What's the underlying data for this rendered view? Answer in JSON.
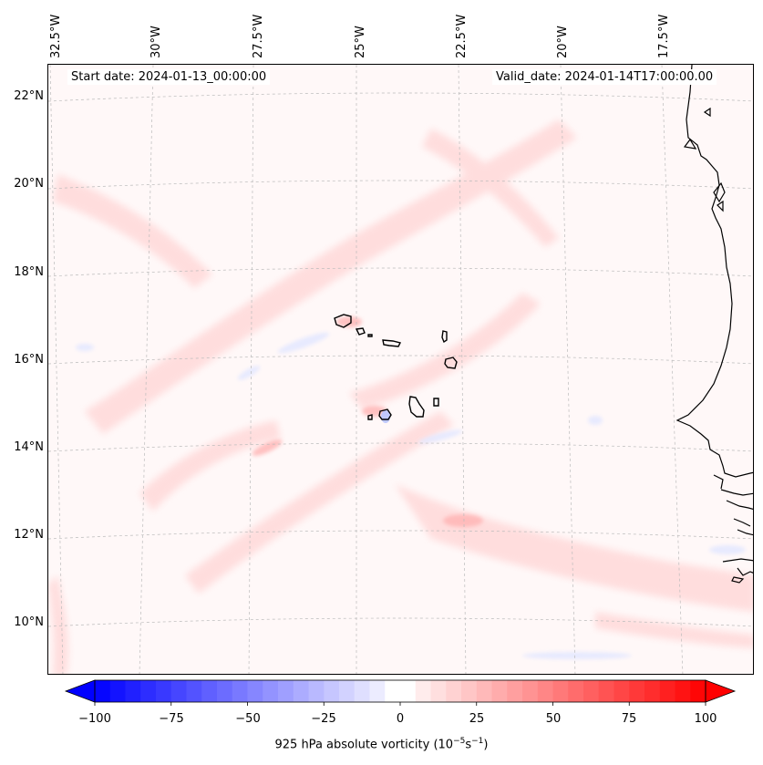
{
  "map": {
    "start_date": "Start date: 2024-01-13_00:00:00",
    "valid_date": "Valid_date: 2024-01-14T17:00:00.00",
    "lon_labels": [
      "32.5°W",
      "30°W",
      "27.5°W",
      "25°W",
      "22.5°W",
      "20°W",
      "17.5°W"
    ],
    "lat_labels": [
      "22°N",
      "20°N",
      "18°N",
      "16°N",
      "14°N",
      "12°N",
      "10°N"
    ],
    "colors": {
      "positive": "#ff0000",
      "negative": "#0000ff",
      "coast": "#000000",
      "grid": "#bbbbbb"
    }
  },
  "colorbar": {
    "ticks": [
      "−100",
      "−75",
      "−50",
      "−25",
      "0",
      "25",
      "50",
      "75",
      "100"
    ],
    "label_prefix": "925 hPa absolute vorticity (10",
    "label_exp1": "−5",
    "label_mid": "s",
    "label_exp2": "−1",
    "label_suffix": ")",
    "min": -100,
    "max": 100,
    "step": 5
  }
}
